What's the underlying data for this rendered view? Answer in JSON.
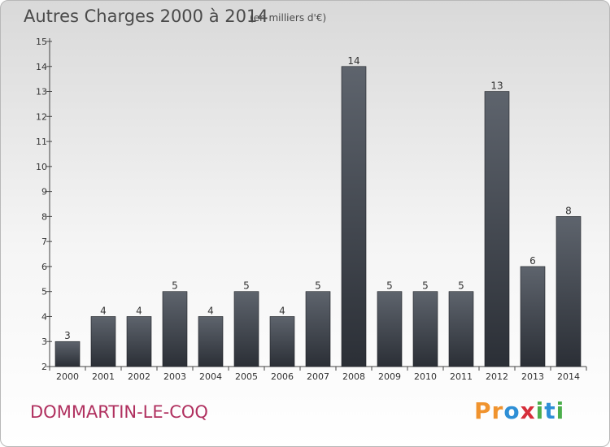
{
  "header": {
    "title": "Autres Charges 2000 à 2014",
    "subtitle": "(en milliers d'€)"
  },
  "footer": {
    "city": "DOMMARTIN-LE-COQ",
    "logo_letters": [
      "P",
      "r",
      "o",
      "x",
      "i",
      "t",
      "i"
    ]
  },
  "colors": {
    "bar": "#3a3f47",
    "city": "#b0305f",
    "logo": [
      "#f0932e",
      "#f0932e",
      "#2e8fd6",
      "#d62e3a",
      "#4cae4c",
      "#2e8fd6",
      "#4cae4c"
    ]
  },
  "chart_data": {
    "type": "bar",
    "title": "Autres Charges 2000 à 2014",
    "subtitle": "(en milliers d'€)",
    "categories": [
      "2000",
      "2001",
      "2002",
      "2003",
      "2004",
      "2005",
      "2006",
      "2007",
      "2008",
      "2009",
      "2010",
      "2011",
      "2012",
      "2013",
      "2014"
    ],
    "values": [
      3,
      4,
      4,
      5,
      4,
      5,
      4,
      5,
      14,
      5,
      5,
      5,
      13,
      6,
      8
    ],
    "ylim": [
      2,
      15
    ],
    "yticks": [
      2,
      3,
      4,
      5,
      6,
      7,
      8,
      9,
      10,
      11,
      12,
      13,
      14,
      15
    ],
    "grid": false
  }
}
